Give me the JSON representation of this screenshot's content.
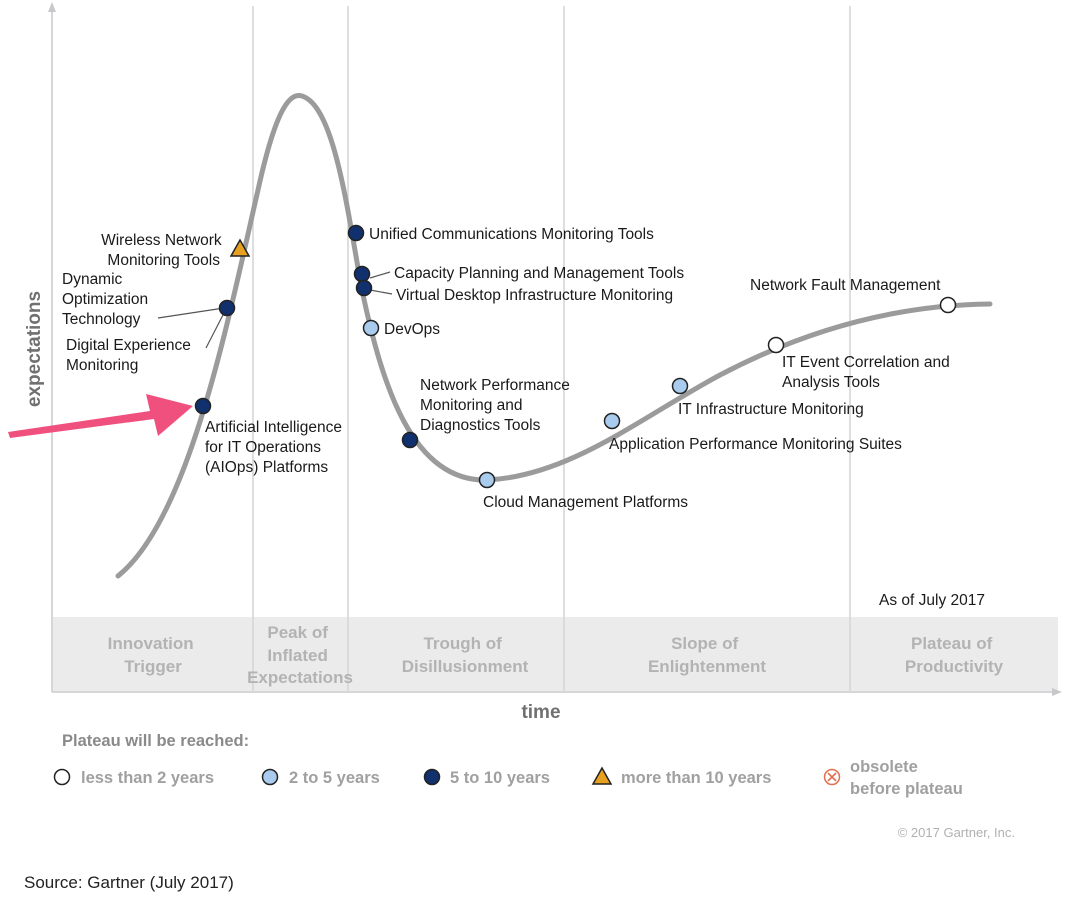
{
  "chart_data": {
    "type": "scatter",
    "title": "",
    "xlabel": "time",
    "ylabel": "expectations",
    "as_of": "As of July 2017",
    "phases": [
      [
        "Innovation",
        "Trigger"
      ],
      [
        "Peak of",
        "Inflated",
        "Expectations"
      ],
      [
        "Trough of",
        "Disillusionment"
      ],
      [
        "Slope of",
        "Enlightenment"
      ],
      [
        "Plateau of",
        "Productivity"
      ]
    ],
    "legend": {
      "title": "Plateau will be reached:",
      "items": [
        {
          "key": "lt2",
          "label": "less than 2 years",
          "shape": "circle",
          "color": "#ffffff"
        },
        {
          "key": "2to5",
          "label": "2 to 5 years",
          "shape": "circle",
          "color": "#a9cbee"
        },
        {
          "key": "5to10",
          "label": "5 to 10 years",
          "shape": "circle",
          "color": "#10306e"
        },
        {
          "key": "gt10",
          "label": "more than 10 years",
          "shape": "triangle",
          "color": "#e8a020"
        },
        {
          "key": "obsolete",
          "label": [
            "obsolete",
            "before plateau"
          ],
          "shape": "crossed-circle",
          "color": "#e07050"
        }
      ]
    },
    "technologies": [
      {
        "name": [
          "Artificial Intelligence",
          "for IT Operations",
          "(AIOps) Platforms"
        ],
        "plateau": "5to10"
      },
      {
        "name": [
          "Digital Experience",
          "Monitoring"
        ],
        "plateau": "5to10"
      },
      {
        "name": [
          "Dynamic",
          "Optimization",
          "Technology"
        ],
        "plateau": "5to10"
      },
      {
        "name": [
          "Wireless Network",
          "Monitoring Tools"
        ],
        "plateau": "gt10"
      },
      {
        "name": [
          "Unified Communications Monitoring Tools"
        ],
        "plateau": "5to10"
      },
      {
        "name": [
          "Capacity Planning and Management Tools"
        ],
        "plateau": "5to10"
      },
      {
        "name": [
          "Virtual Desktop Infrastructure Monitoring"
        ],
        "plateau": "5to10"
      },
      {
        "name": [
          "DevOps"
        ],
        "plateau": "2to5"
      },
      {
        "name": [
          "Network Performance",
          "Monitoring and",
          "Diagnostics Tools"
        ],
        "plateau": "5to10"
      },
      {
        "name": [
          "Cloud Management Platforms"
        ],
        "plateau": "2to5"
      },
      {
        "name": [
          "Application Performance Monitoring Suites"
        ],
        "plateau": "2to5"
      },
      {
        "name": [
          "IT Infrastructure Monitoring"
        ],
        "plateau": "2to5"
      },
      {
        "name": [
          "IT Event Correlation and",
          "Analysis Tools"
        ],
        "plateau": "lt2"
      },
      {
        "name": [
          "Network Fault Management"
        ],
        "plateau": "lt2"
      }
    ]
  },
  "copyright": "© 2017 Gartner, Inc.",
  "source": "Source: Gartner (July 2017)",
  "colors": {
    "curve": "#9b9b9b",
    "phase_band": "#ebebeb",
    "divider": "#d4d4d8",
    "axis": "#c8c8cc",
    "arrow": "#f0507e"
  }
}
